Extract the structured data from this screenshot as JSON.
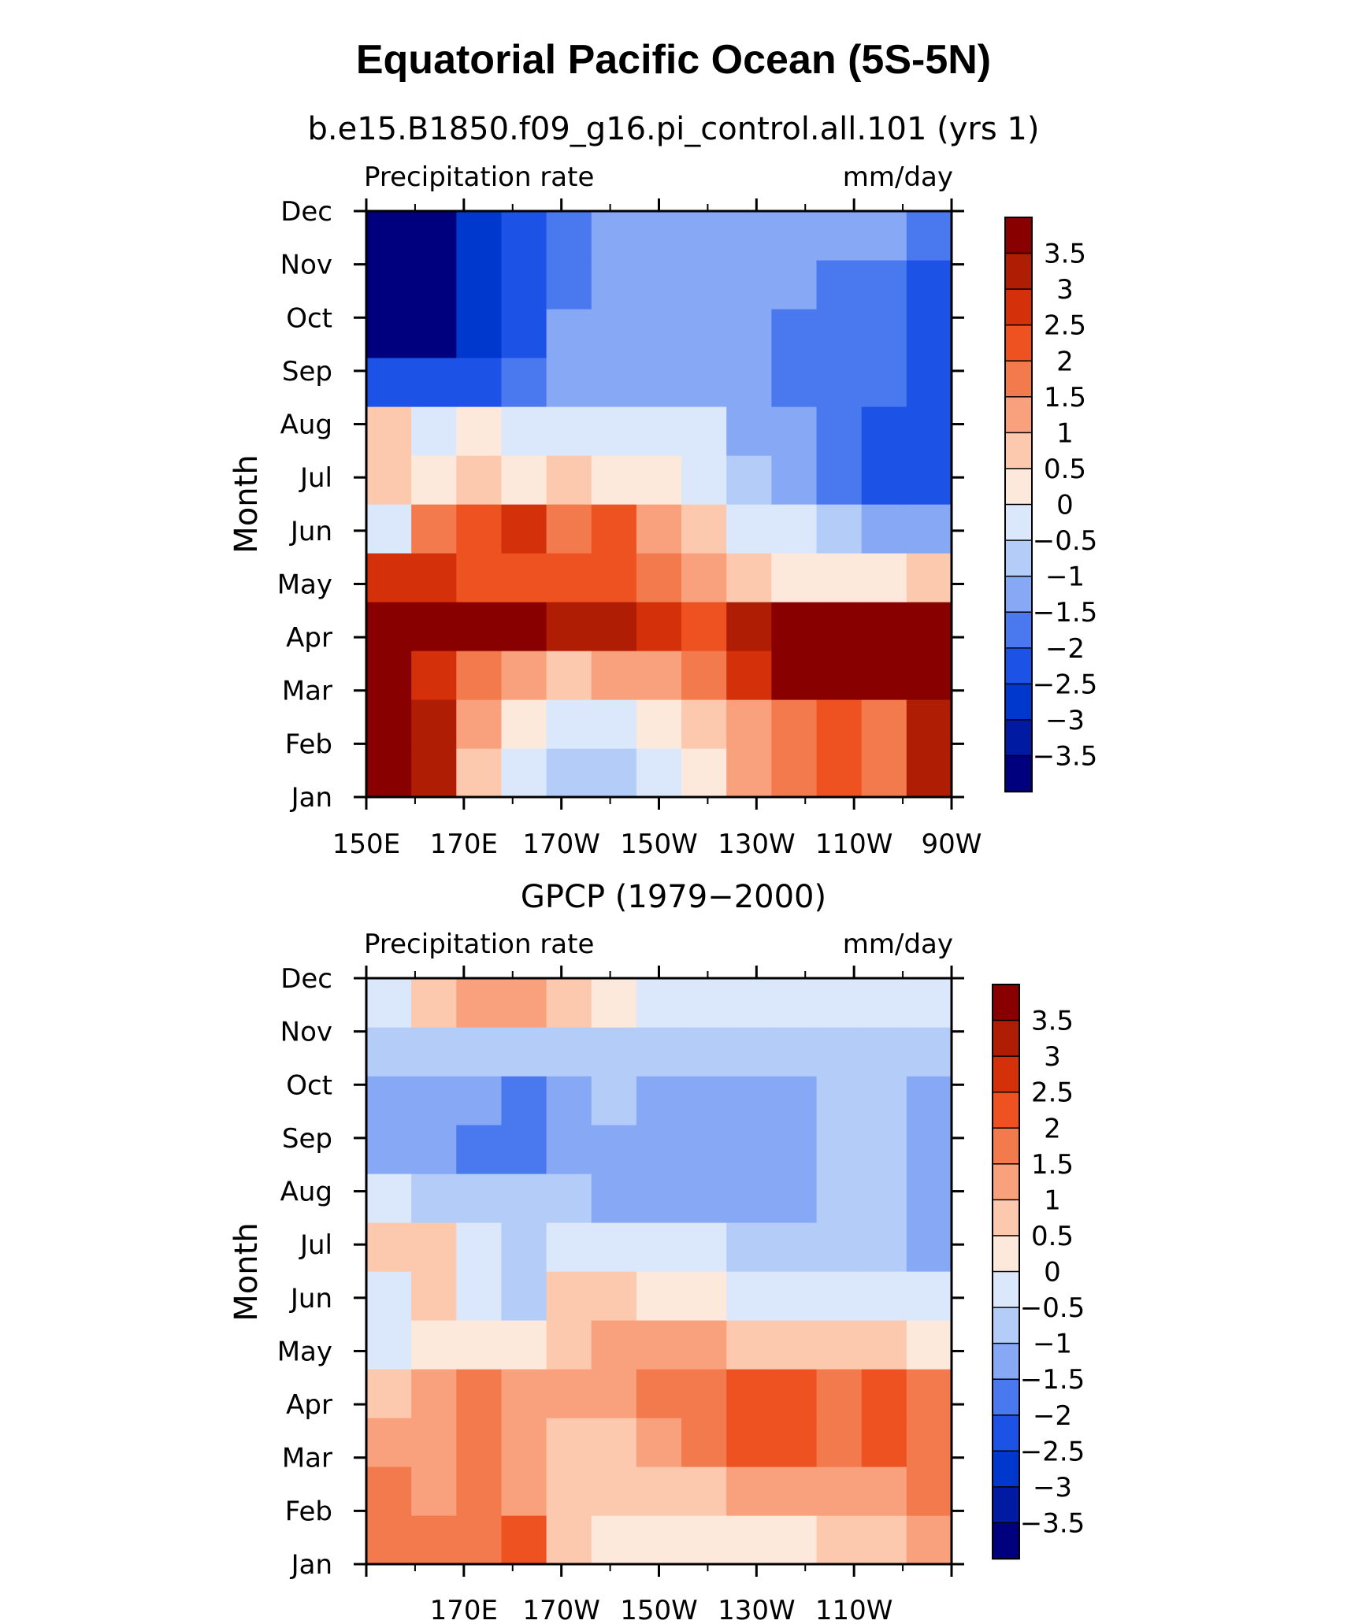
{
  "title": "Equatorial Pacific Ocean (5S-5N)",
  "chart_data": [
    {
      "type": "heatmap",
      "subtitle": "b.e15.B1850.f09_g16.pi_control.all.101 (yrs 1)",
      "left_label": "Precipitation rate",
      "right_label": "mm/day",
      "ylabel": "Month",
      "x_tick_labels": [
        "150E",
        "170E",
        "170W",
        "150W",
        "130W",
        "110W",
        "90W"
      ],
      "y_tick_labels": [
        "Jan",
        "Feb",
        "Mar",
        "Apr",
        "May",
        "Jun",
        "Jul",
        "Aug",
        "Sep",
        "Oct",
        "Nov",
        "Dec"
      ],
      "x": [
        "150E",
        "160E",
        "170E",
        "180",
        "170W",
        "160W",
        "150W",
        "140W",
        "130W",
        "120W",
        "110W",
        "100W",
        "90W"
      ],
      "y": [
        "Jan",
        "Feb",
        "Mar",
        "Apr",
        "May",
        "Jun",
        "Jul",
        "Aug",
        "Sep",
        "Oct",
        "Nov",
        "Dec"
      ],
      "values": [
        [
          4.0,
          3.0,
          0.5,
          -0.2,
          -0.6,
          -0.9,
          -0.5,
          0.3,
          1.0,
          1.5,
          2.0,
          1.8,
          3.0
        ],
        [
          4.0,
          3.0,
          1.0,
          0.2,
          -0.2,
          -0.4,
          0.2,
          0.8,
          1.2,
          1.5,
          2.0,
          1.8,
          3.0
        ],
        [
          4.0,
          2.5,
          1.5,
          1.0,
          0.8,
          1.0,
          1.2,
          1.5,
          2.5,
          4.0,
          4.0,
          4.0,
          4.0
        ],
        [
          4.0,
          4.0,
          3.5,
          3.5,
          3.0,
          3.0,
          2.5,
          2.0,
          3.0,
          4.0,
          4.0,
          4.0,
          4.0
        ],
        [
          2.5,
          2.5,
          2.0,
          2.0,
          2.0,
          2.0,
          1.5,
          1.0,
          0.5,
          0.0,
          0.2,
          0.3,
          0.5
        ],
        [
          -0.5,
          1.5,
          2.0,
          2.5,
          1.8,
          2.0,
          1.0,
          0.5,
          -0.2,
          -0.5,
          -1.0,
          -1.5,
          -1.5
        ],
        [
          0.5,
          0.3,
          0.6,
          0.4,
          0.5,
          0.4,
          0.0,
          -0.5,
          -1.0,
          -1.5,
          -2.0,
          -2.5,
          -2.5
        ],
        [
          0.5,
          -0.5,
          0.0,
          -0.5,
          -0.5,
          -0.3,
          -0.5,
          -0.5,
          -1.2,
          -1.5,
          -2.0,
          -2.5,
          -2.5
        ],
        [
          -2.5,
          -2.5,
          -2.5,
          -2.0,
          -1.2,
          -1.2,
          -1.5,
          -1.5,
          -1.5,
          -2.0,
          -2.0,
          -2.0,
          -2.5
        ],
        [
          -4.0,
          -4.0,
          -3.0,
          -2.5,
          -1.5,
          -1.5,
          -1.5,
          -1.5,
          -1.5,
          -2.0,
          -2.0,
          -2.0,
          -2.5
        ],
        [
          -4.0,
          -4.0,
          -3.0,
          -2.5,
          -1.8,
          -1.5,
          -1.5,
          -1.5,
          -1.5,
          -1.5,
          -2.0,
          -2.0,
          -2.5
        ],
        [
          -4.0,
          -4.0,
          -3.0,
          -2.5,
          -2.0,
          -1.5,
          -1.5,
          -1.5,
          -1.5,
          -1.5,
          -1.5,
          -1.5,
          -2.0
        ]
      ],
      "colorbar_labels": [
        "3.5",
        "3",
        "2.5",
        "2",
        "1.5",
        "1",
        "0.5",
        "0",
        "−0.5",
        "−1",
        "−1.5",
        "−2",
        "−2.5",
        "−3",
        "−3.5"
      ],
      "levels": [
        -3.5,
        -3,
        -2.5,
        -2,
        -1.5,
        -1,
        -0.5,
        0,
        0.5,
        1,
        1.5,
        2,
        2.5,
        3,
        3.5
      ],
      "colors": [
        "#00007e",
        "#001ba2",
        "#0037cc",
        "#1d52e6",
        "#4a78ee",
        "#86a8f5",
        "#b4ccf8",
        "#dbe8fb",
        "#fde9dc",
        "#fcc8ae",
        "#f9a07d",
        "#f37a4d",
        "#ee5221",
        "#d43009",
        "#b01d05",
        "#880000"
      ]
    },
    {
      "type": "heatmap",
      "subtitle": "GPCP (1979−2000)",
      "left_label": "Precipitation rate",
      "right_label": "mm/day",
      "ylabel": "Month",
      "x_tick_labels": [
        "",
        "170E",
        "170W",
        "150W",
        "130W",
        "110W",
        ""
      ],
      "y_tick_labels": [
        "Jan",
        "Feb",
        "Mar",
        "Apr",
        "May",
        "Jun",
        "Jul",
        "Aug",
        "Sep",
        "Oct",
        "Nov",
        "Dec"
      ],
      "x": [
        "150E",
        "160E",
        "170E",
        "180",
        "170W",
        "160W",
        "150W",
        "140W",
        "130W",
        "120W",
        "110W",
        "100W",
        "90W"
      ],
      "y": [
        "Jan",
        "Feb",
        "Mar",
        "Apr",
        "May",
        "Jun",
        "Jul",
        "Aug",
        "Sep",
        "Oct",
        "Nov",
        "Dec"
      ],
      "values": [
        [
          1.5,
          1.5,
          1.8,
          2.0,
          0.5,
          0.3,
          0.2,
          0.3,
          0.2,
          0.3,
          0.5,
          0.6,
          1.0
        ],
        [
          1.5,
          1.2,
          1.5,
          1.2,
          0.5,
          0.6,
          0.8,
          0.8,
          1.0,
          1.0,
          1.0,
          1.0,
          1.5
        ],
        [
          1.2,
          1.2,
          1.5,
          1.2,
          0.5,
          0.8,
          1.2,
          1.5,
          2.0,
          2.0,
          1.5,
          2.0,
          1.5
        ],
        [
          0.5,
          1.2,
          1.5,
          1.0,
          1.0,
          1.2,
          1.8,
          1.8,
          2.0,
          2.0,
          1.8,
          2.0,
          1.5
        ],
        [
          -0.2,
          0.2,
          0.2,
          0.3,
          0.8,
          1.0,
          1.0,
          1.0,
          0.8,
          0.6,
          0.6,
          0.5,
          0.3
        ],
        [
          -0.2,
          0.5,
          -0.5,
          -1.0,
          0.5,
          0.5,
          0.3,
          0.0,
          -0.2,
          -0.3,
          -0.4,
          -0.5,
          -0.5
        ],
        [
          0.5,
          0.5,
          -0.5,
          -1.0,
          -0.5,
          -0.3,
          -0.5,
          -0.5,
          -0.7,
          -0.7,
          -0.8,
          -0.8,
          -1.2
        ],
        [
          -0.2,
          -0.6,
          -1.0,
          -1.0,
          -1.0,
          -1.2,
          -1.5,
          -1.5,
          -1.5,
          -1.5,
          -1.0,
          -1.0,
          -1.2
        ],
        [
          -1.5,
          -1.5,
          -2.0,
          -1.8,
          -1.2,
          -1.2,
          -1.5,
          -1.5,
          -1.5,
          -1.2,
          -1.0,
          -1.0,
          -1.2
        ],
        [
          -1.2,
          -1.2,
          -1.5,
          -1.8,
          -1.2,
          -1.0,
          -1.5,
          -1.5,
          -1.5,
          -1.5,
          -1.0,
          -1.0,
          -1.5
        ],
        [
          -0.8,
          -1.0,
          -0.8,
          -0.8,
          -0.8,
          -0.8,
          -0.8,
          -0.8,
          -1.0,
          -0.8,
          -0.8,
          -0.8,
          -0.8
        ],
        [
          -0.3,
          0.5,
          1.0,
          1.0,
          0.5,
          0.2,
          -0.2,
          -0.3,
          -0.5,
          -0.5,
          -0.5,
          -0.5,
          -0.5
        ]
      ],
      "colorbar_labels": [
        "3.5",
        "3",
        "2.5",
        "2",
        "1.5",
        "1",
        "0.5",
        "0",
        "−0.5",
        "−1",
        "−1.5",
        "−2",
        "−2.5",
        "−3",
        "−3.5"
      ],
      "levels": [
        -3.5,
        -3,
        -2.5,
        -2,
        -1.5,
        -1,
        -0.5,
        0,
        0.5,
        1,
        1.5,
        2,
        2.5,
        3,
        3.5
      ],
      "colors": [
        "#00007e",
        "#001ba2",
        "#0037cc",
        "#1d52e6",
        "#4a78ee",
        "#86a8f5",
        "#b4ccf8",
        "#dbe8fb",
        "#fde9dc",
        "#fcc8ae",
        "#f9a07d",
        "#f37a4d",
        "#ee5221",
        "#d43009",
        "#b01d05",
        "#880000"
      ]
    }
  ]
}
